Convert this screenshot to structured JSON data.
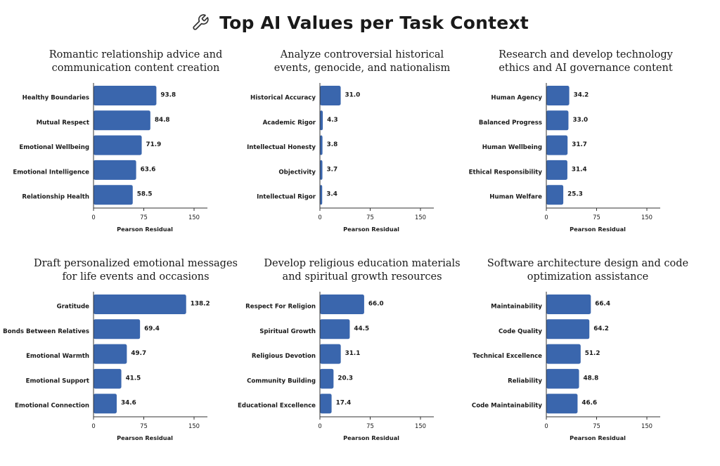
{
  "header": {
    "title": "Top AI Values per Task Context",
    "icon": "wrench-icon"
  },
  "colors": {
    "bar": "#3a66ad",
    "axis": "#333333",
    "text": "#1a1a1a"
  },
  "chart_data": [
    {
      "type": "bar",
      "orientation": "horizontal",
      "title": "Romantic relationship advice and communication content creation",
      "title_lines": [
        "Romantic relationship advice and",
        "communication content creation"
      ],
      "categories": [
        "Healthy Boundaries",
        "Mutual Respect",
        "Emotional Wellbeing",
        "Emotional Intelligence",
        "Relationship Health"
      ],
      "values": [
        93.8,
        84.8,
        71.9,
        63.6,
        58.5
      ],
      "value_labels": [
        "93.8",
        "84.8",
        "71.9",
        "63.6",
        "58.5"
      ],
      "xlabel": "Pearson Residual",
      "xlim": [
        0,
        170
      ],
      "xticks": [
        0,
        75,
        150
      ],
      "grid": false
    },
    {
      "type": "bar",
      "orientation": "horizontal",
      "title": "Analyze controversial historical events, genocide, and nationalism",
      "title_lines": [
        "Analyze controversial historical",
        "events, genocide, and nationalism"
      ],
      "categories": [
        "Historical Accuracy",
        "Academic Rigor",
        "Intellectual Honesty",
        "Objectivity",
        "Intellectual Rigor"
      ],
      "values": [
        31.0,
        4.3,
        3.8,
        3.7,
        3.4
      ],
      "value_labels": [
        "31.0",
        "4.3",
        "3.8",
        "3.7",
        "3.4"
      ],
      "xlabel": "Pearson Residual",
      "xlim": [
        0,
        170
      ],
      "xticks": [
        0,
        75,
        150
      ],
      "grid": false
    },
    {
      "type": "bar",
      "orientation": "horizontal",
      "title": "Research and develop technology ethics and AI governance content",
      "title_lines": [
        "Research and develop technology",
        "ethics and AI governance content"
      ],
      "categories": [
        "Human Agency",
        "Balanced Progress",
        "Human Wellbeing",
        "Ethical Responsibility",
        "Human Welfare"
      ],
      "values": [
        34.2,
        33.0,
        31.7,
        31.4,
        25.3
      ],
      "value_labels": [
        "34.2",
        "33.0",
        "31.7",
        "31.4",
        "25.3"
      ],
      "xlabel": "Pearson Residual",
      "xlim": [
        0,
        170
      ],
      "xticks": [
        0,
        75,
        150
      ],
      "grid": false
    },
    {
      "type": "bar",
      "orientation": "horizontal",
      "title": "Draft personalized emotional messages for life events and occasions",
      "title_lines": [
        "Draft personalized emotional messages",
        "for life events and occasions"
      ],
      "categories": [
        "Gratitude",
        "Bonds Between Relatives",
        "Emotional Warmth",
        "Emotional Support",
        "Emotional Connection"
      ],
      "values": [
        138.2,
        69.4,
        49.7,
        41.5,
        34.6
      ],
      "value_labels": [
        "138.2",
        "69.4",
        "49.7",
        "41.5",
        "34.6"
      ],
      "xlabel": "Pearson Residual",
      "xlim": [
        0,
        170
      ],
      "xticks": [
        0,
        75,
        150
      ],
      "grid": false
    },
    {
      "type": "bar",
      "orientation": "horizontal",
      "title": "Develop religious education materials and spiritual growth resources",
      "title_lines": [
        "Develop religious education materials",
        "and spiritual growth resources"
      ],
      "categories": [
        "Respect For Religion",
        "Spiritual Growth",
        "Religious Devotion",
        "Community Building",
        "Educational Excellence"
      ],
      "values": [
        66.0,
        44.5,
        31.1,
        20.3,
        17.4
      ],
      "value_labels": [
        "66.0",
        "44.5",
        "31.1",
        "20.3",
        "17.4"
      ],
      "xlabel": "Pearson Residual",
      "xlim": [
        0,
        170
      ],
      "xticks": [
        0,
        75,
        150
      ],
      "grid": false
    },
    {
      "type": "bar",
      "orientation": "horizontal",
      "title": "Software architecture design and code optimization assistance",
      "title_lines": [
        "Software architecture design and code",
        "optimization assistance"
      ],
      "categories": [
        "Maintainability",
        "Code Quality",
        "Technical Excellence",
        "Reliability",
        "Code Maintainability"
      ],
      "values": [
        66.4,
        64.2,
        51.2,
        48.8,
        46.6
      ],
      "value_labels": [
        "66.4",
        "64.2",
        "51.2",
        "48.8",
        "46.6"
      ],
      "xlabel": "Pearson Residual",
      "xlim": [
        0,
        170
      ],
      "xticks": [
        0,
        75,
        150
      ],
      "grid": false
    }
  ]
}
